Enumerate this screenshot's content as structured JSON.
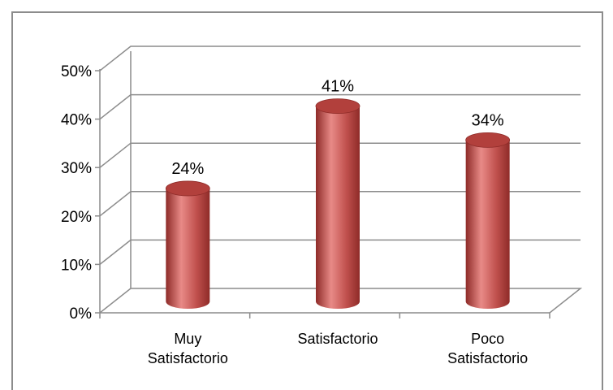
{
  "chart_data": {
    "type": "bar",
    "style": "3d-cylinder",
    "categories": [
      [
        "Muy",
        "Satisfactorio"
      ],
      [
        "Satisfactorio"
      ],
      [
        "Poco",
        "Satisfactorio"
      ]
    ],
    "values": [
      24,
      41,
      34
    ],
    "data_labels": [
      "24%",
      "41%",
      "34%"
    ],
    "ylim": [
      0,
      50
    ],
    "yticks": [
      0,
      10,
      20,
      30,
      40,
      50
    ],
    "ytick_labels": [
      "0%",
      "10%",
      "20%",
      "30%",
      "40%",
      "50%"
    ],
    "grid": true,
    "legend": "none",
    "colors": {
      "bar": "#c0504d",
      "bar_highlight": "#e88a87",
      "bar_shadow": "#8e2b28",
      "bar_top": "#b2403c",
      "grid": "#8c8c8c",
      "frame": "#8c8c8c"
    }
  }
}
